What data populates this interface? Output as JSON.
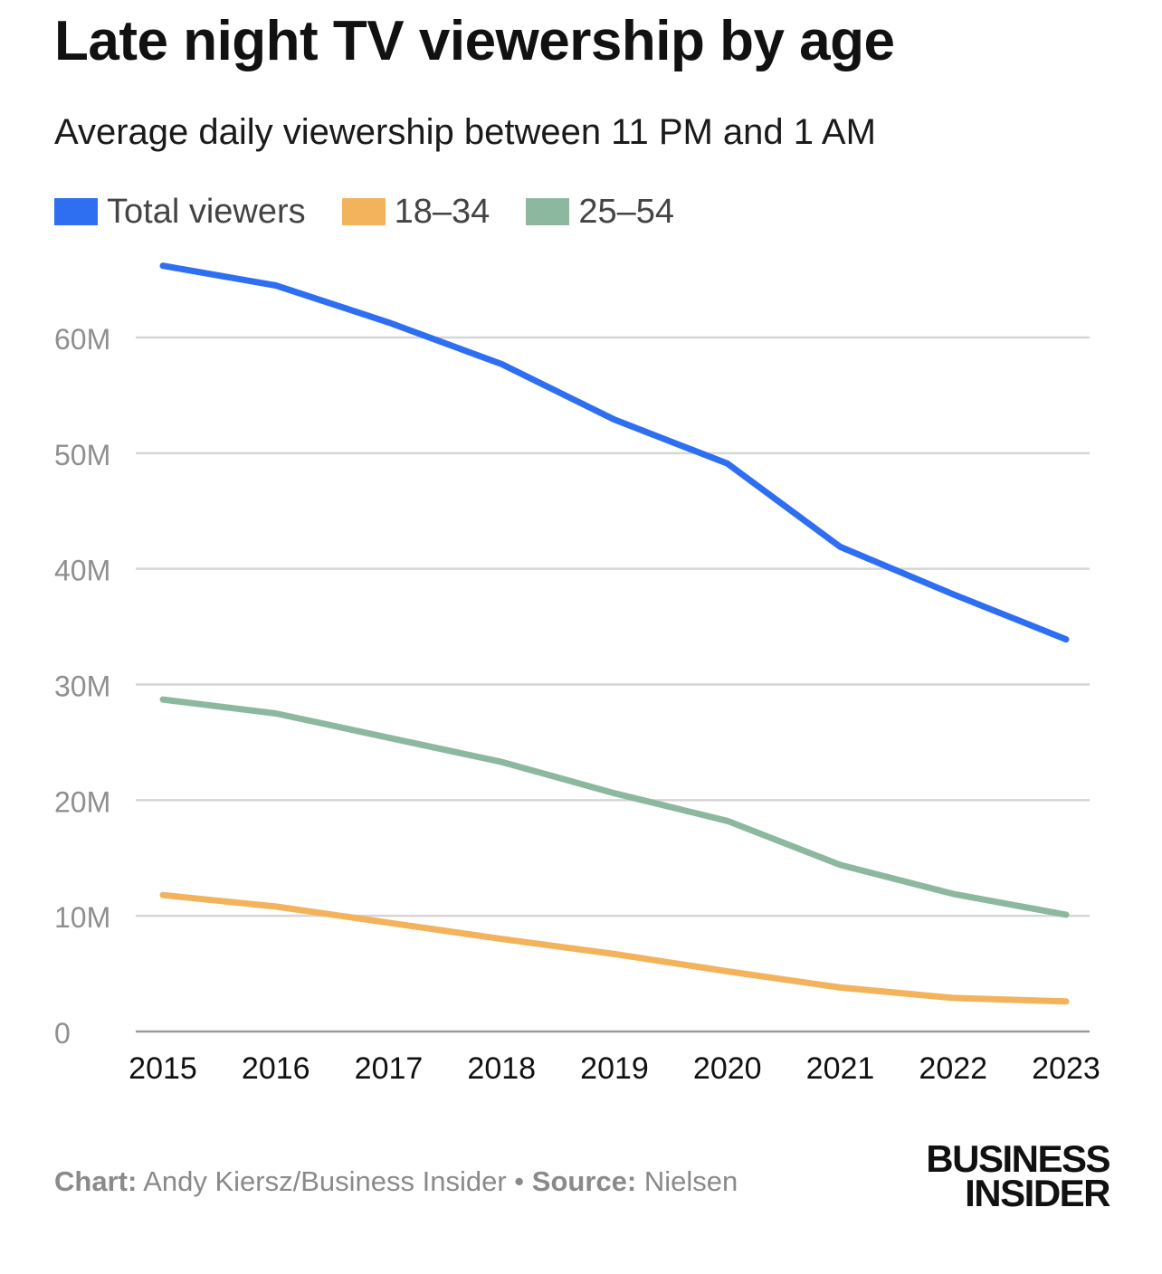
{
  "header": {
    "title": "Late night TV viewership by age",
    "subtitle": "Average daily viewership between 11 PM and 1 AM"
  },
  "legend": [
    {
      "label": "Total viewers",
      "color": "#2e6ff2"
    },
    {
      "label": "18–34",
      "color": "#f2b35c"
    },
    {
      "label": "25–54",
      "color": "#8db8a0"
    }
  ],
  "footer": {
    "chart_label": "Chart:",
    "chart_value": "Andy Kiersz/Business Insider",
    "separator": "•",
    "source_label": "Source:",
    "source_value": "Nielsen"
  },
  "logo": {
    "line1": "BUSINESS",
    "line2": "INSIDER"
  },
  "chart_data": {
    "type": "line",
    "title": "Late night TV viewership by age",
    "subtitle": "Average daily viewership between 11 PM and 1 AM",
    "x": [
      "2015",
      "2016",
      "2017",
      "2018",
      "2019",
      "2020",
      "2021",
      "2022",
      "2023"
    ],
    "ylim": [
      0,
      60000000
    ],
    "yticks": [
      0,
      10000000,
      20000000,
      30000000,
      40000000,
      50000000,
      60000000
    ],
    "ytick_labels": [
      "0",
      "10M",
      "20M",
      "30M",
      "40M",
      "50M",
      "60M"
    ],
    "grid": true,
    "legend_position": "top-left",
    "series": [
      {
        "name": "Total viewers",
        "color": "#2e6ff2",
        "values": [
          66200000,
          64500000,
          61300000,
          57700000,
          52900000,
          49100000,
          41900000,
          37800000,
          33900000
        ]
      },
      {
        "name": "18–34",
        "color": "#f2b35c",
        "values": [
          11800000,
          10800000,
          9400000,
          8000000,
          6700000,
          5200000,
          3800000,
          2900000,
          2600000
        ]
      },
      {
        "name": "25–54",
        "color": "#8db8a0",
        "values": [
          28700000,
          27500000,
          25400000,
          23300000,
          20600000,
          18200000,
          14400000,
          11900000,
          10100000
        ]
      }
    ]
  }
}
